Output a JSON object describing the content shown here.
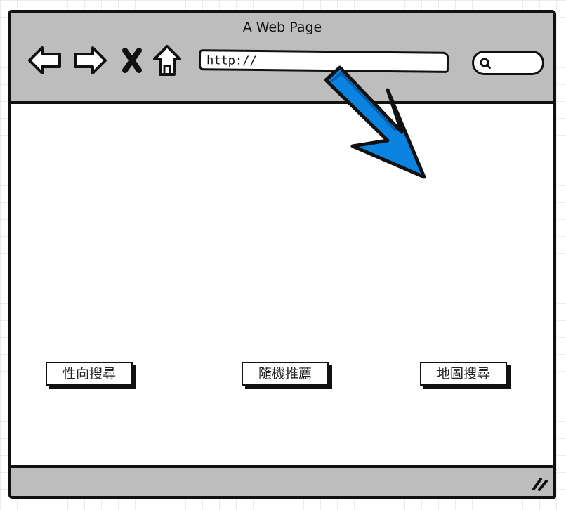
{
  "window": {
    "title": "A Web Page"
  },
  "toolbar": {
    "icons": [
      "back-icon",
      "forward-icon",
      "close-icon",
      "home-icon"
    ],
    "url_value": "http://",
    "search_icon": "search-icon"
  },
  "main": {
    "buttons": [
      {
        "label": "性向搜尋"
      },
      {
        "label": "隨機推薦"
      },
      {
        "label": "地圖搜尋"
      }
    ],
    "annotation_arrow": {
      "color": "#0a84e0",
      "direction": "down-right"
    }
  },
  "colors": {
    "chrome": "#bdbdbd",
    "outline": "#111111",
    "arrow": "#0a84e0"
  }
}
